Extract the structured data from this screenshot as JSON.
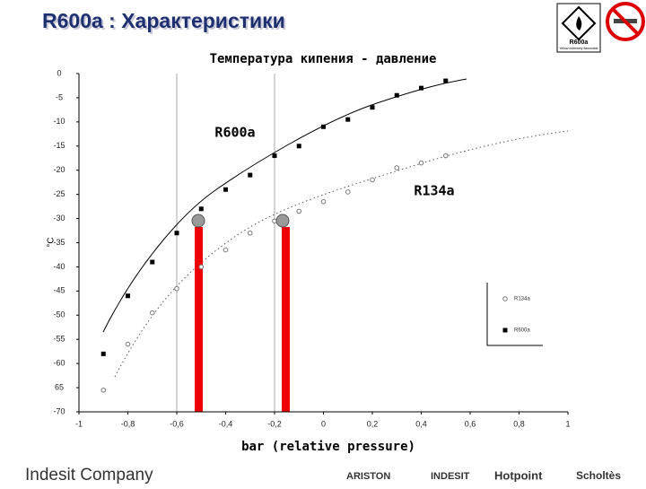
{
  "page_title": "R600a : Характеристики",
  "sign": {
    "label": "R600a",
    "caption": "Yellow extremely flammable"
  },
  "footer": {
    "company": "Indesit Company",
    "brands": [
      "ARISTON",
      "INDESIT",
      "Hotpoint",
      "Scholtès"
    ]
  },
  "chart_data": {
    "type": "scatter",
    "title": "Температура кипения - давление",
    "x_label": "bar (relative pressure)",
    "y_label": "°C",
    "annotations": [
      "R600a",
      "R134a"
    ],
    "x": [
      -0.9,
      -0.8,
      -0.7,
      -0.6,
      -0.5,
      -0.4,
      -0.3,
      -0.2,
      -0.1,
      0,
      0.1,
      0.2,
      0.3,
      0.4,
      0.5
    ],
    "series": [
      {
        "name": "R134a",
        "color": "#777777",
        "marker": "circle",
        "values": [
          -65.5,
          -56,
          -49.5,
          -44.5,
          -40,
          -36.5,
          -33,
          -30.5,
          -28.5,
          -26.5,
          -24.5,
          -22,
          -19.5,
          -18.5,
          -17
        ]
      },
      {
        "name": "R600a",
        "color": "#000000",
        "marker": "square",
        "values": [
          -58,
          -46,
          -39,
          -33,
          -28,
          -24,
          -21,
          -17,
          -15,
          -11,
          -9.5,
          -7,
          -4.5,
          -3,
          -1.5
        ]
      }
    ],
    "xlim": [
      -1,
      1
    ],
    "xticks": [
      -1,
      {
        "value": -0.8,
        "label": "-0,8"
      },
      {
        "value": -0.6,
        "label": "-0,6"
      },
      {
        "value": -0.4,
        "label": "-0,4"
      },
      {
        "value": -0.2,
        "label": "-0,2"
      },
      0,
      {
        "value": 0.2,
        "label": "0,2"
      },
      {
        "value": 0.4,
        "label": "0,4"
      },
      {
        "value": 0.6,
        "label": "0,6"
      },
      {
        "value": 0.8,
        "label": "0,8"
      },
      1
    ],
    "ylim": [
      -70,
      0
    ],
    "yticks": [
      0,
      -5,
      -10,
      -15,
      -20,
      -25,
      -30,
      -35,
      -40,
      -45,
      -50,
      -55,
      -60,
      {
        "value": -65,
        "label": "65"
      },
      -70
    ]
  }
}
